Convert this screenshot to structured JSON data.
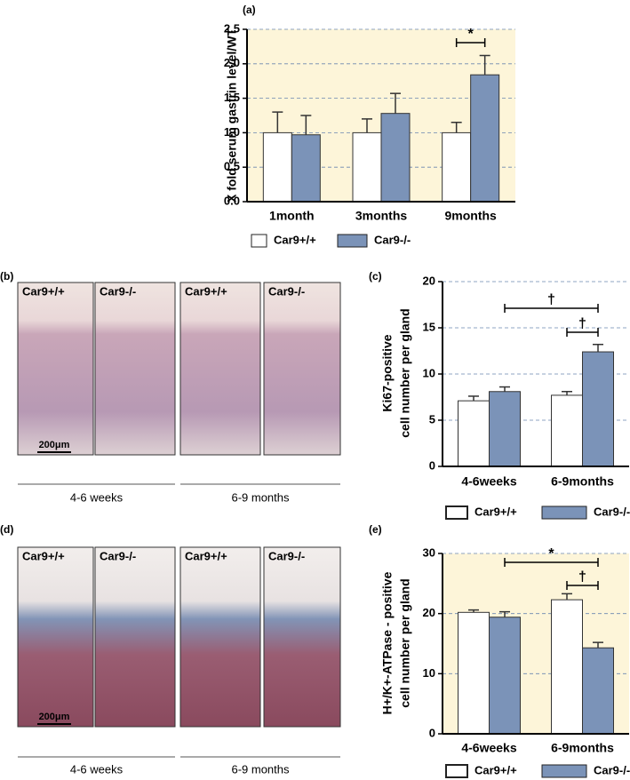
{
  "chart_data": [
    {
      "type": "bar",
      "title": "(a)",
      "ylabel": [
        "X fold serum gastrin level/WT"
      ],
      "categories": [
        "1month",
        "3months",
        "9months"
      ],
      "series": [
        {
          "name": "Car9+/+",
          "color": "#ffffff",
          "values": [
            1.0,
            1.0,
            1.0
          ],
          "errors": [
            0.3,
            0.2,
            0.15
          ]
        },
        {
          "name": "Car9-/-",
          "color": "#7b93b8",
          "values": [
            0.97,
            1.28,
            1.84
          ],
          "errors": [
            0.28,
            0.29,
            0.28
          ]
        }
      ],
      "ylim": [
        0,
        2.5
      ],
      "yticks": [
        {
          "value": 0,
          "label": "0.0"
        },
        0.5,
        {
          "value": 1,
          "label": "1.0"
        },
        1.5,
        {
          "value": 2,
          "label": "2.0"
        },
        2.5
      ],
      "grid": true,
      "background": "#fdf5d9",
      "annotations": [
        "*"
      ]
    },
    {
      "type": "bar",
      "title": "(c)",
      "ylabel": [
        "Ki67-positive",
        "cell number per gland"
      ],
      "categories": [
        "4-6weeks",
        "6-9months"
      ],
      "series": [
        {
          "name": "Car9+/+",
          "color": "#ffffff",
          "values": [
            7.1,
            7.7
          ],
          "errors": [
            0.5,
            0.4
          ]
        },
        {
          "name": "Car9-/-",
          "color": "#7b93b8",
          "values": [
            8.1,
            12.4
          ],
          "errors": [
            0.5,
            0.8
          ]
        }
      ],
      "ylim": [
        0,
        20
      ],
      "yticks": [
        0,
        5,
        10,
        15,
        20
      ],
      "grid": true,
      "background": "#ffffff",
      "annotations": [
        "†",
        "†"
      ]
    },
    {
      "type": "bar",
      "title": "(e)",
      "ylabel": [
        "H+/K+-ATPase - positive",
        "cell number per gland"
      ],
      "categories": [
        "4-6weeks",
        "6-9months"
      ],
      "series": [
        {
          "name": "Car9+/+",
          "color": "#ffffff",
          "values": [
            20.2,
            22.3
          ],
          "errors": [
            0.4,
            1.0
          ]
        },
        {
          "name": "Car9-/-",
          "color": "#7b93b8",
          "values": [
            19.4,
            14.3
          ],
          "errors": [
            0.9,
            0.9
          ]
        }
      ],
      "ylim": [
        0,
        30
      ],
      "yticks": [
        0,
        10,
        20,
        30
      ],
      "grid": true,
      "background": "#fdf5d9",
      "annotations": [
        "*",
        "†"
      ]
    }
  ],
  "image_panels": [
    {
      "label": "(b)",
      "images": [
        "Car9+/+",
        "Car9-/-",
        "Car9+/+",
        "Car9-/-"
      ],
      "groups": [
        "4-6 weeks",
        "6-9 months"
      ],
      "scale": "200μm"
    },
    {
      "label": "(d)",
      "images": [
        "Car9+/+",
        "Car9-/-",
        "Car9+/+",
        "Car9-/-"
      ],
      "groups": [
        "4-6 weeks",
        "6-9 months"
      ],
      "scale": "200μm"
    }
  ]
}
